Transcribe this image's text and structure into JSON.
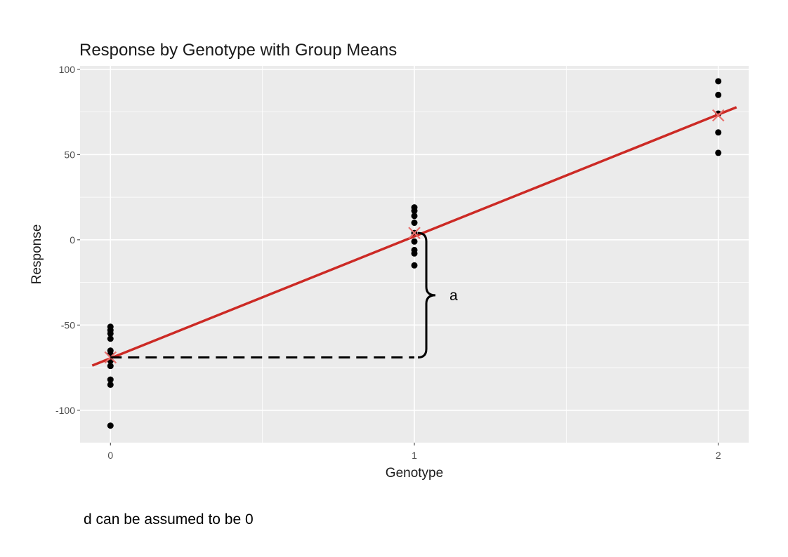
{
  "caption": "d can be assumed to be 0",
  "colors": {
    "panel": "#ebebeb",
    "grid": "#ffffff",
    "points": "#000000",
    "fit_line": "#cc2a25",
    "mean_marker": "#e8706d"
  },
  "chart_data": {
    "type": "scatter",
    "title": "Response by Genotype with Group Means",
    "xlabel": "Genotype",
    "ylabel": "Response",
    "xlim": [
      -0.1,
      2.1
    ],
    "ylim": [
      -119,
      102
    ],
    "x_ticks": [
      0,
      1,
      2
    ],
    "y_ticks": [
      -100,
      -50,
      0,
      50,
      100
    ],
    "grid": true,
    "series": [
      {
        "points": [
          [
            0,
            -51
          ],
          [
            0,
            -53
          ],
          [
            0,
            -55
          ],
          [
            0,
            -58
          ],
          [
            0,
            -65
          ],
          [
            0,
            -67
          ],
          [
            0,
            -71
          ],
          [
            0,
            -74
          ],
          [
            0,
            -82
          ],
          [
            0,
            -85
          ],
          [
            0,
            -109
          ],
          [
            1,
            19
          ],
          [
            1,
            17
          ],
          [
            1,
            14
          ],
          [
            1,
            10
          ],
          [
            1,
            4
          ],
          [
            1,
            -1
          ],
          [
            1,
            -6
          ],
          [
            1,
            -8
          ],
          [
            1,
            -15
          ],
          [
            2,
            93
          ],
          [
            2,
            85
          ],
          [
            2,
            74
          ],
          [
            2,
            63
          ],
          [
            2,
            51
          ]
        ]
      }
    ],
    "group_means": [
      [
        0,
        -69
      ],
      [
        1,
        4
      ],
      [
        2,
        73
      ]
    ],
    "fit_line": {
      "intercept": -69.5,
      "slope": 71.5
    },
    "annotations": {
      "brace_label": "a",
      "dashed_from": [
        0,
        -69
      ],
      "dashed_to": [
        1,
        -69
      ],
      "brace_span": [
        -69,
        4
      ]
    }
  }
}
